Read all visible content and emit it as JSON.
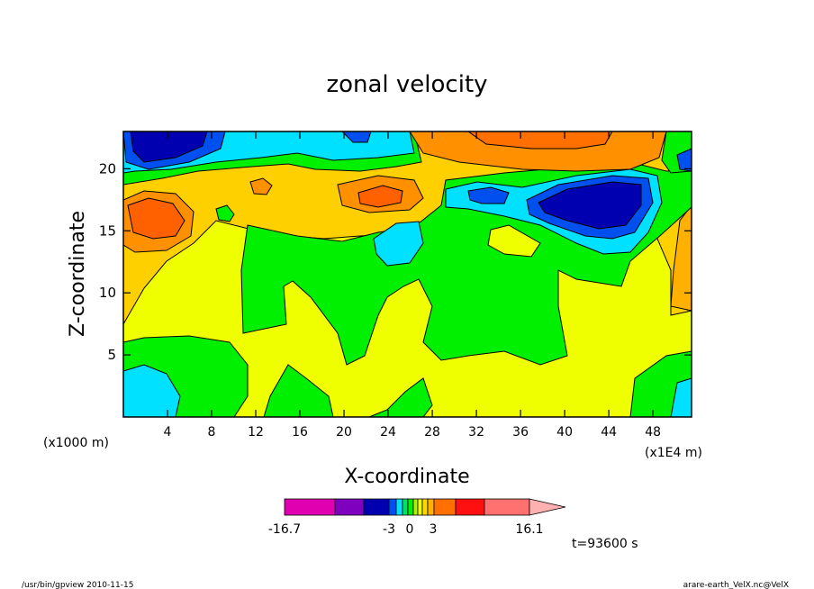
{
  "chart_data": {
    "type": "heatmap",
    "title": "zonal velocity",
    "xlabel": "X-coordinate",
    "ylabel": "Z-coordinate",
    "x_units": "(x1000 m)",
    "x_scale_note": "(x1E4 m)",
    "xlim": [
      0,
      51.5
    ],
    "ylim": [
      0,
      23
    ],
    "x_ticks": [
      4,
      8,
      12,
      16,
      20,
      24,
      28,
      32,
      36,
      40,
      44,
      48
    ],
    "y_ticks": [
      5,
      10,
      15,
      20
    ],
    "colorbar": {
      "min_label": "-16.7",
      "max_label": "16.1",
      "tick_labels": [
        "-3",
        "0",
        "3"
      ],
      "colors": [
        "#e000b0",
        "#8000c0",
        "#0000b0",
        "#0050f0",
        "#00e0ff",
        "#00e060",
        "#00f000",
        "#b0f000",
        "#f0ff00",
        "#ffd800",
        "#ffb000",
        "#ff7000",
        "#ff1010",
        "#ff7070",
        "#ffb0b0"
      ]
    },
    "time_label": "t=93600 s"
  },
  "footer": {
    "left": "/usr/bin/gpview   2010-11-15",
    "right": "arare-earth_VelX.nc@VelX"
  }
}
